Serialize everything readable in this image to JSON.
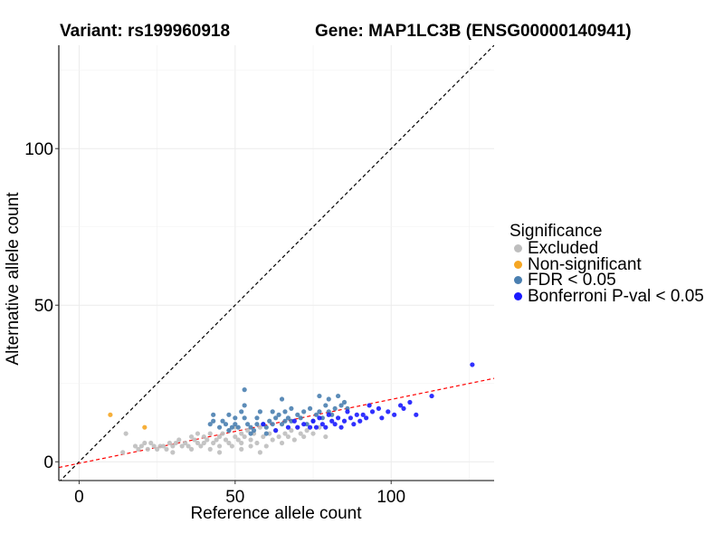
{
  "header": {
    "variant_title": "Variant: rs199960918",
    "gene_title": "Gene: MAP1LC3B (ENSG00000140941)"
  },
  "legend": {
    "title": "Significance",
    "items": [
      {
        "label": "Excluded",
        "color": "#bebebe"
      },
      {
        "label": "Non-significant",
        "color": "#f5a623"
      },
      {
        "label": "FDR < 0.05",
        "color": "#4a7fb0"
      },
      {
        "label": "Bonferroni P-val < 0.05",
        "color": "#1a1aff"
      }
    ]
  },
  "chart_data": {
    "type": "scatter",
    "xlabel": "Reference allele count",
    "ylabel": "Alternative allele count",
    "xlim": [
      -6.5,
      133
    ],
    "ylim": [
      -6,
      133
    ],
    "xticks": [
      0,
      50,
      100
    ],
    "yticks": [
      0,
      50,
      100
    ],
    "grid": true,
    "reference_lines": [
      {
        "name": "identity-line",
        "slope": 1,
        "intercept": 0,
        "color": "#000000",
        "dash": "dashed"
      },
      {
        "name": "regression-line",
        "slope": 0.204,
        "intercept": -0.5,
        "color": "#ff0000",
        "dash": "dashed"
      }
    ],
    "series": [
      {
        "name": "Excluded",
        "color": "#bebebe",
        "points": [
          [
            14,
            3
          ],
          [
            15,
            9
          ],
          [
            18,
            5
          ],
          [
            19,
            4
          ],
          [
            20,
            5
          ],
          [
            21,
            6
          ],
          [
            22,
            4
          ],
          [
            23,
            6
          ],
          [
            24,
            5
          ],
          [
            25,
            4
          ],
          [
            26,
            5
          ],
          [
            27,
            5
          ],
          [
            28,
            4
          ],
          [
            29,
            6
          ],
          [
            30,
            5
          ],
          [
            31,
            6
          ],
          [
            32,
            7
          ],
          [
            33,
            5
          ],
          [
            34,
            6
          ],
          [
            35,
            5
          ],
          [
            36,
            8
          ],
          [
            37,
            7
          ],
          [
            38,
            6
          ],
          [
            38,
            9
          ],
          [
            39,
            5
          ],
          [
            40,
            6
          ],
          [
            40,
            8
          ],
          [
            41,
            7
          ],
          [
            42,
            4
          ],
          [
            42,
            9
          ],
          [
            43,
            6
          ],
          [
            44,
            7
          ],
          [
            45,
            8
          ],
          [
            45,
            5
          ],
          [
            46,
            9
          ],
          [
            47,
            7
          ],
          [
            48,
            6
          ],
          [
            48,
            10
          ],
          [
            49,
            5
          ],
          [
            50,
            8
          ],
          [
            50,
            11
          ],
          [
            51,
            7
          ],
          [
            52,
            9
          ],
          [
            52,
            6
          ],
          [
            53,
            8
          ],
          [
            54,
            10
          ],
          [
            55,
            7
          ],
          [
            55,
            5
          ],
          [
            56,
            9
          ],
          [
            57,
            6
          ],
          [
            58,
            11
          ],
          [
            59,
            8
          ],
          [
            60,
            5
          ],
          [
            61,
            9
          ],
          [
            62,
            7
          ],
          [
            63,
            10
          ],
          [
            64,
            8
          ],
          [
            65,
            6
          ],
          [
            66,
            9
          ],
          [
            67,
            8
          ],
          [
            68,
            10
          ],
          [
            69,
            7
          ],
          [
            70,
            11
          ],
          [
            71,
            9
          ],
          [
            72,
            8
          ],
          [
            73,
            10
          ],
          [
            75,
            9
          ],
          [
            77,
            11
          ],
          [
            79,
            8
          ],
          [
            45,
            3
          ],
          [
            52,
            4
          ],
          [
            58,
            3
          ],
          [
            30,
            3
          ],
          [
            36,
            4
          ]
        ]
      },
      {
        "name": "Non-significant",
        "color": "#f5a623",
        "points": [
          [
            10,
            15
          ],
          [
            21,
            11
          ]
        ]
      },
      {
        "name": "FDR < 0.05",
        "color": "#4a7fb0",
        "points": [
          [
            42,
            12
          ],
          [
            43,
            13
          ],
          [
            43,
            15
          ],
          [
            45,
            11
          ],
          [
            46,
            13
          ],
          [
            47,
            12
          ],
          [
            48,
            15
          ],
          [
            49,
            11
          ],
          [
            50,
            12
          ],
          [
            50,
            14
          ],
          [
            51,
            11
          ],
          [
            52,
            16
          ],
          [
            53,
            14
          ],
          [
            53,
            18
          ],
          [
            53,
            23
          ],
          [
            54,
            12
          ],
          [
            55,
            11
          ],
          [
            56,
            10
          ],
          [
            57,
            12
          ],
          [
            57,
            14
          ],
          [
            58,
            16
          ],
          [
            59,
            12
          ],
          [
            60,
            11
          ],
          [
            61,
            13
          ],
          [
            62,
            12
          ],
          [
            62,
            16
          ],
          [
            63,
            14
          ],
          [
            64,
            15
          ],
          [
            65,
            12
          ],
          [
            65,
            20
          ],
          [
            66,
            13
          ],
          [
            66,
            16
          ],
          [
            67,
            14
          ],
          [
            68,
            13
          ],
          [
            68,
            17
          ],
          [
            70,
            15
          ],
          [
            71,
            14
          ],
          [
            72,
            16
          ],
          [
            73,
            12
          ],
          [
            74,
            17
          ],
          [
            75,
            13
          ],
          [
            76,
            15
          ],
          [
            77,
            16
          ],
          [
            77,
            21
          ],
          [
            78,
            14
          ],
          [
            79,
            18
          ],
          [
            80,
            16
          ],
          [
            80,
            20
          ],
          [
            81,
            15
          ],
          [
            82,
            17
          ],
          [
            83,
            21
          ],
          [
            84,
            18
          ],
          [
            85,
            19
          ],
          [
            86,
            17
          ],
          [
            48,
            10
          ],
          [
            55,
            9
          ],
          [
            60,
            9
          ]
        ]
      },
      {
        "name": "Bonferroni P-val < 0.05",
        "color": "#1a1aff",
        "points": [
          [
            59,
            12
          ],
          [
            63,
            10
          ],
          [
            67,
            11
          ],
          [
            69,
            13
          ],
          [
            70,
            11
          ],
          [
            72,
            12
          ],
          [
            74,
            11
          ],
          [
            75,
            13
          ],
          [
            76,
            11
          ],
          [
            77,
            14
          ],
          [
            78,
            12
          ],
          [
            79,
            11
          ],
          [
            80,
            15
          ],
          [
            81,
            13
          ],
          [
            82,
            12
          ],
          [
            83,
            14
          ],
          [
            84,
            11
          ],
          [
            85,
            13
          ],
          [
            86,
            16
          ],
          [
            87,
            14
          ],
          [
            88,
            12
          ],
          [
            89,
            15
          ],
          [
            90,
            13
          ],
          [
            91,
            15
          ],
          [
            92,
            14
          ],
          [
            93,
            18
          ],
          [
            94,
            16
          ],
          [
            96,
            17
          ],
          [
            97,
            14
          ],
          [
            99,
            16
          ],
          [
            101,
            15
          ],
          [
            103,
            18
          ],
          [
            104,
            17
          ],
          [
            106,
            19
          ],
          [
            108,
            15
          ],
          [
            113,
            21
          ],
          [
            126,
            31
          ]
        ]
      }
    ]
  }
}
